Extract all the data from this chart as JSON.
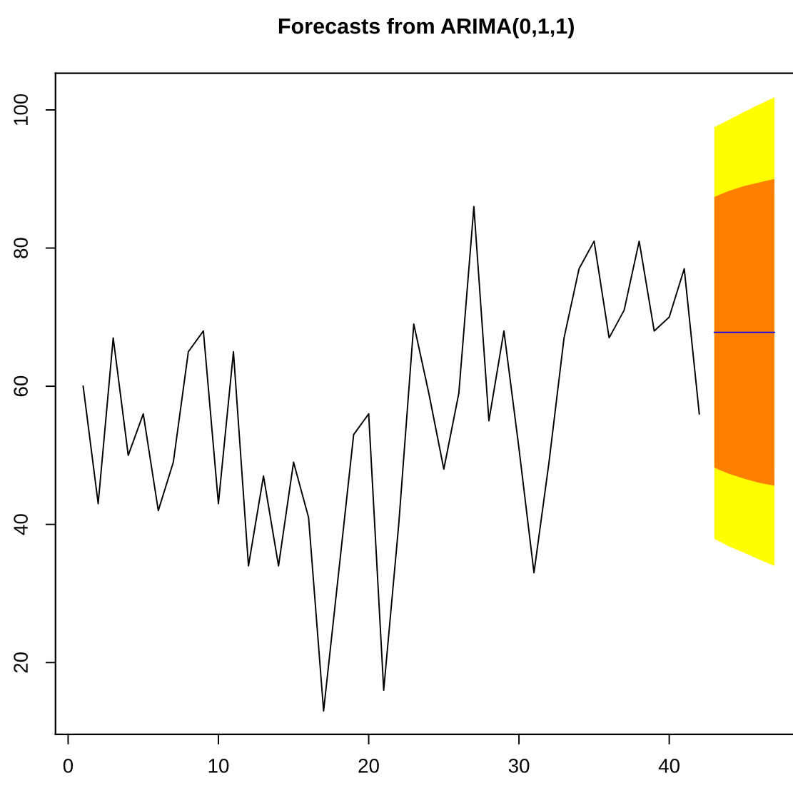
{
  "chart_data": {
    "type": "line",
    "title": "Forecasts from ARIMA(0,1,1)",
    "xlim": [
      -0.84,
      48.5
    ],
    "xticks": [
      0,
      10,
      20,
      30,
      40
    ],
    "ylim": [
      9.6,
      105.3
    ],
    "yticks": [
      20,
      40,
      60,
      80,
      100
    ],
    "grid": false,
    "legend": false,
    "series": [
      {
        "color": "#000000",
        "x": [
          1,
          2,
          3,
          4,
          5,
          6,
          7,
          8,
          9,
          10,
          11,
          12,
          13,
          14,
          15,
          16,
          17,
          18,
          19,
          20,
          21,
          22,
          23,
          24,
          25,
          26,
          27,
          28,
          29,
          30,
          31,
          32,
          33,
          34,
          35,
          36,
          37,
          38,
          39,
          40,
          41,
          42
        ],
        "values": [
          60,
          43,
          67,
          50,
          56,
          42,
          49,
          65,
          68,
          43,
          65,
          34,
          47,
          34,
          49,
          41,
          13,
          33,
          53,
          56,
          16,
          40,
          69,
          59,
          48,
          59,
          86,
          55,
          68,
          51,
          33,
          49,
          67,
          77,
          81,
          67,
          71,
          81,
          68,
          70,
          77,
          56
        ]
      },
      {
        "color": "#ffff00",
        "x": [
          43,
          44,
          45,
          46,
          47
        ],
        "values": [
          null,
          null,
          null,
          null,
          null
        ],
        "lower": [
          37.9,
          36.8,
          35.9,
          34.9,
          34.0
        ],
        "upper": [
          97.5,
          98.6,
          99.7,
          100.8,
          101.8
        ]
      },
      {
        "color": "#ff7f00",
        "x": [
          43,
          44,
          45,
          46,
          47
        ],
        "values": [
          null,
          null,
          null,
          null,
          null
        ],
        "lower": [
          48.2,
          47.3,
          46.6,
          46.0,
          45.6
        ],
        "upper": [
          87.4,
          88.3,
          89.0,
          89.5,
          90.0
        ]
      },
      {
        "color": "#0000ff",
        "x": [
          43,
          44,
          45,
          46,
          47
        ],
        "values": [
          67.8,
          67.8,
          67.8,
          67.8,
          67.8
        ]
      }
    ]
  }
}
